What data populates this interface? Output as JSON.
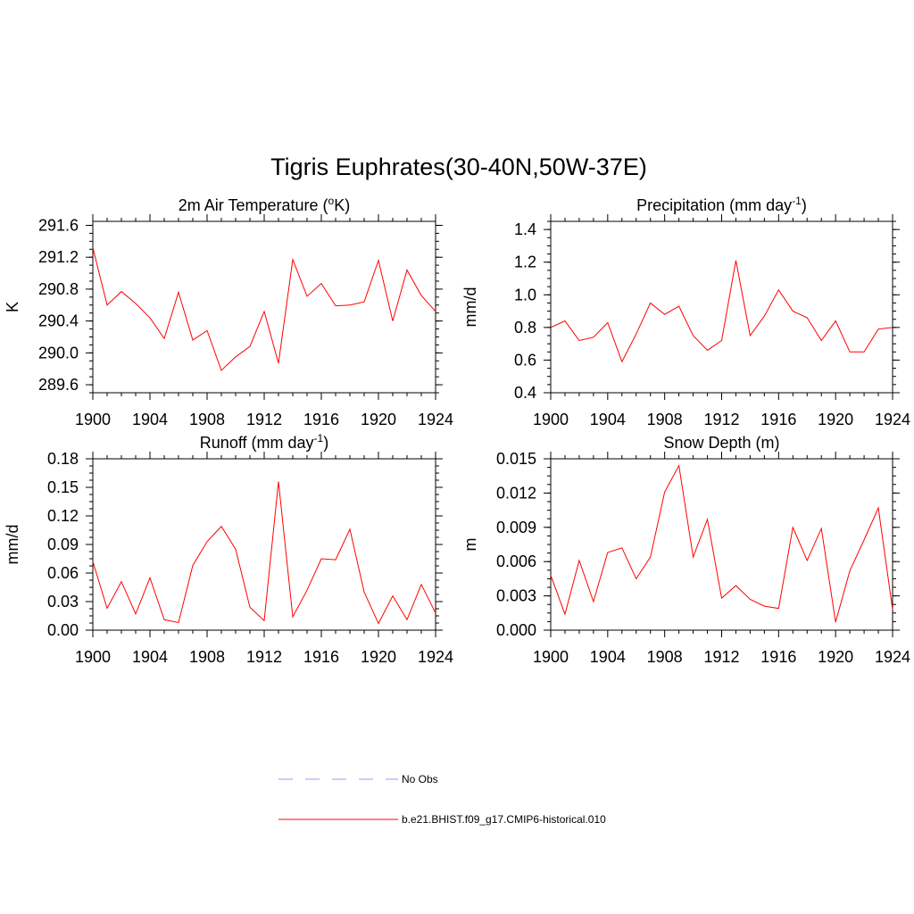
{
  "figure": {
    "title": "Tigris Euphrates(30-40N,50W-37E)"
  },
  "legend": {
    "items": [
      {
        "label": "No Obs",
        "color": "#9999ff",
        "style": "dashed"
      },
      {
        "label": "b.e21.BHIST.f09_g17.CMIP6-historical.010",
        "color": "#ff0000",
        "style": "solid"
      }
    ]
  },
  "chart_data": [
    {
      "type": "line",
      "title": {
        "main": "2m Air Temperature (",
        "sup": "o",
        "tail": "K)"
      },
      "ylabel": "K",
      "ylim": [
        289.5,
        291.65
      ],
      "yticks": [
        "289.6",
        "290.0",
        "290.4",
        "290.8",
        "291.2",
        "291.6"
      ],
      "xlim": [
        1900,
        1924
      ],
      "xticks": [
        "1900",
        "1904",
        "1908",
        "1912",
        "1916",
        "1920",
        "1924"
      ],
      "series": [
        {
          "color": "#ff0000",
          "x": [
            1900,
            1901,
            1902,
            1903,
            1904,
            1905,
            1906,
            1907,
            1908,
            1909,
            1910,
            1911,
            1912,
            1913,
            1914,
            1915,
            1916,
            1917,
            1918,
            1919,
            1920,
            1921,
            1922,
            1923,
            1924
          ],
          "values": [
            291.32,
            290.6,
            290.77,
            290.62,
            290.44,
            290.18,
            290.76,
            290.16,
            290.28,
            289.78,
            289.95,
            290.08,
            290.52,
            289.87,
            291.17,
            290.71,
            290.87,
            290.59,
            290.6,
            290.64,
            291.16,
            290.4,
            291.04,
            290.72,
            290.52
          ]
        }
      ]
    },
    {
      "type": "line",
      "title": {
        "main": "Precipitation (mm day",
        "sup": "-1",
        "tail": ")"
      },
      "ylabel": "mm/d",
      "ylim": [
        0.4,
        1.45
      ],
      "yticks": [
        "0.4",
        "0.6",
        "0.8",
        "1.0",
        "1.2",
        "1.4"
      ],
      "xlim": [
        1900,
        1924
      ],
      "xticks": [
        "1900",
        "1904",
        "1908",
        "1912",
        "1916",
        "1920",
        "1924"
      ],
      "series": [
        {
          "color": "#ff0000",
          "x": [
            1900,
            1901,
            1902,
            1903,
            1904,
            1905,
            1906,
            1907,
            1908,
            1909,
            1910,
            1911,
            1912,
            1913,
            1914,
            1915,
            1916,
            1917,
            1918,
            1919,
            1920,
            1921,
            1922,
            1923,
            1924
          ],
          "values": [
            0.8,
            0.84,
            0.72,
            0.74,
            0.83,
            0.59,
            0.76,
            0.95,
            0.88,
            0.93,
            0.75,
            0.66,
            0.72,
            1.21,
            0.75,
            0.87,
            1.03,
            0.9,
            0.86,
            0.72,
            0.84,
            0.65,
            0.65,
            0.79,
            0.8
          ]
        }
      ]
    },
    {
      "type": "line",
      "title": {
        "main": "Runoff (mm day",
        "sup": "-1",
        "tail": ")"
      },
      "ylabel": "mm/d",
      "ylim": [
        0.0,
        0.18
      ],
      "yticks": [
        "0.00",
        "0.03",
        "0.06",
        "0.09",
        "0.12",
        "0.15",
        "0.18"
      ],
      "xlim": [
        1900,
        1924
      ],
      "xticks": [
        "1900",
        "1904",
        "1908",
        "1912",
        "1916",
        "1920",
        "1924"
      ],
      "series": [
        {
          "color": "#ff0000",
          "x": [
            1900,
            1901,
            1902,
            1903,
            1904,
            1905,
            1906,
            1907,
            1908,
            1909,
            1910,
            1911,
            1912,
            1913,
            1914,
            1915,
            1916,
            1917,
            1918,
            1919,
            1920,
            1921,
            1922,
            1923,
            1924
          ],
          "values": [
            0.072,
            0.023,
            0.051,
            0.017,
            0.055,
            0.011,
            0.008,
            0.068,
            0.093,
            0.109,
            0.085,
            0.024,
            0.01,
            0.156,
            0.014,
            0.042,
            0.075,
            0.074,
            0.106,
            0.04,
            0.007,
            0.036,
            0.011,
            0.048,
            0.018
          ]
        }
      ]
    },
    {
      "type": "line",
      "title": {
        "main": "Snow Depth (m)",
        "sup": "",
        "tail": ""
      },
      "ylabel": "m",
      "ylim": [
        0.0,
        0.015
      ],
      "yticks": [
        "0.000",
        "0.003",
        "0.006",
        "0.009",
        "0.012",
        "0.015"
      ],
      "xlim": [
        1900,
        1924
      ],
      "xticks": [
        "1900",
        "1904",
        "1908",
        "1912",
        "1916",
        "1920",
        "1924"
      ],
      "series": [
        {
          "color": "#ff0000",
          "x": [
            1900,
            1901,
            1902,
            1903,
            1904,
            1905,
            1906,
            1907,
            1908,
            1909,
            1910,
            1911,
            1912,
            1913,
            1914,
            1915,
            1916,
            1917,
            1918,
            1919,
            1920,
            1921,
            1922,
            1923,
            1924
          ],
          "values": [
            0.0048,
            0.0014,
            0.0061,
            0.0025,
            0.0068,
            0.0072,
            0.0045,
            0.0064,
            0.0121,
            0.0144,
            0.0064,
            0.0097,
            0.0028,
            0.0039,
            0.0027,
            0.0021,
            0.0019,
            0.009,
            0.0061,
            0.0089,
            0.0007,
            0.0052,
            0.0079,
            0.0107,
            0.0018
          ]
        }
      ]
    }
  ]
}
